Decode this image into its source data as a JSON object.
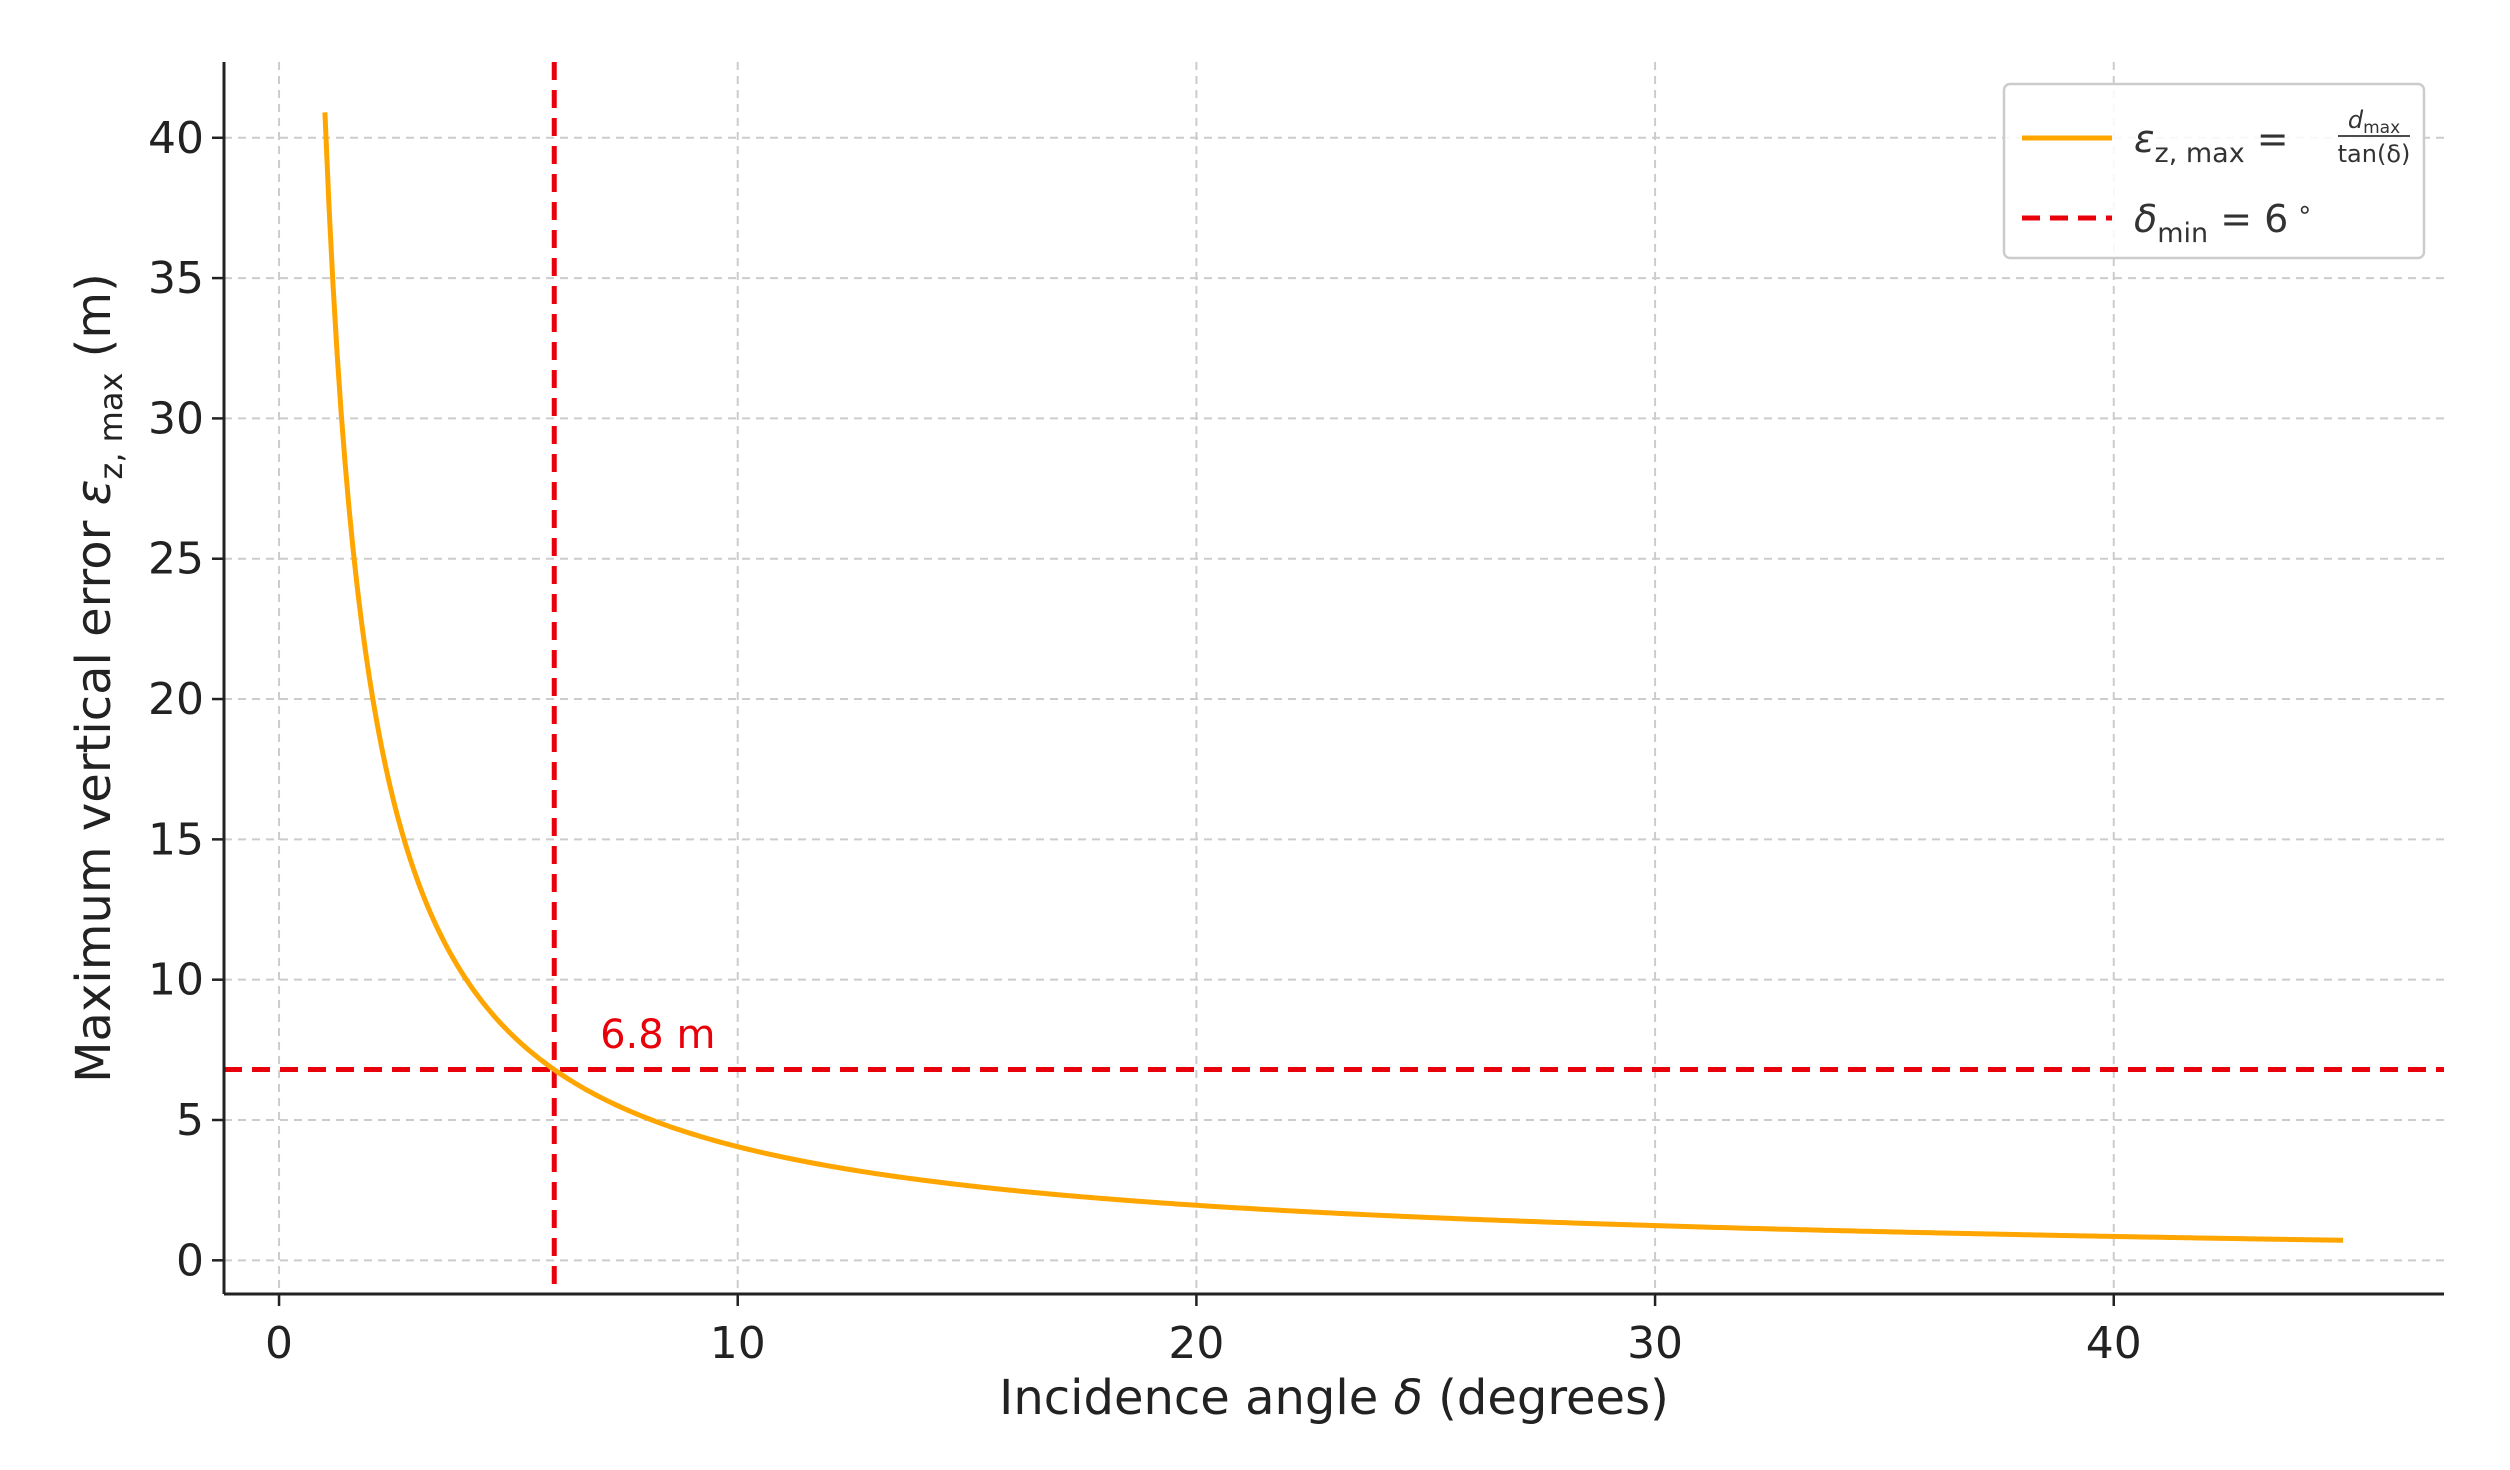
{
  "chart_data": {
    "type": "line",
    "title": "",
    "xlabel": {
      "text_before": "Incidence angle ",
      "symbol": "δ",
      "text_after": " (degrees)"
    },
    "ylabel": {
      "text_before": "Maximum vertical error ",
      "symbol": "ε",
      "subscript": "z, max",
      "text_after": " (m)"
    },
    "xlim": [
      -1.2,
      47.2
    ],
    "ylim": [
      -1.2,
      42.7
    ],
    "xticks": [
      0,
      10,
      20,
      30,
      40
    ],
    "yticks": [
      0,
      5,
      10,
      15,
      20,
      25,
      30,
      35,
      40
    ],
    "grid": true,
    "legend_position": "top-right",
    "colors": {
      "curve": "#FFA500",
      "reference": "#E8000B",
      "grid": "#cccccc",
      "axis": "#222222"
    },
    "series": [
      {
        "name": {
          "symbol": "ε",
          "subscript": "z, max",
          "equals": " = ",
          "numerator": "d",
          "numerator_sub": "max",
          "denominator": "tan(δ)"
        },
        "function": "d_max / tan(delta)",
        "d_max": 0.714,
        "x_range": [
          1,
          45
        ],
        "x": [
          1,
          1.5,
          2,
          3,
          4,
          5,
          6,
          8,
          10,
          15,
          20,
          25,
          30,
          35,
          40,
          45
        ],
        "y": [
          40.9,
          27.3,
          20.4,
          13.6,
          10.2,
          8.16,
          6.79,
          5.08,
          4.05,
          2.66,
          1.96,
          1.53,
          1.24,
          1.02,
          0.85,
          0.71
        ]
      },
      {
        "name": {
          "symbol": "δ",
          "subscript": "min",
          "equals": " = ",
          "value": "6",
          "degree": "∘"
        },
        "type": "vline",
        "x": 6
      },
      {
        "name": "",
        "type": "hline",
        "y": 6.8
      }
    ],
    "annotations": [
      {
        "text": "6.8 m",
        "x": 7,
        "y": 8.0
      }
    ]
  }
}
